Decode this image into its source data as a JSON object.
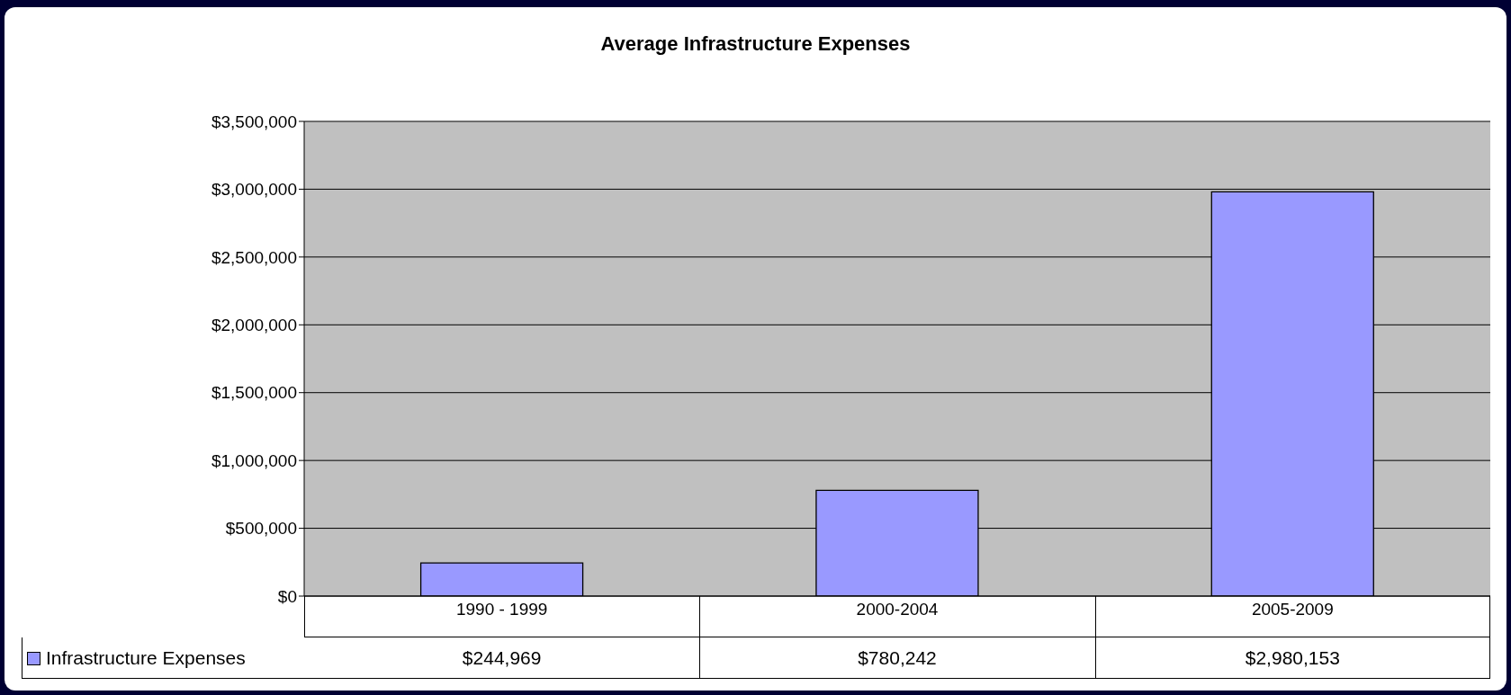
{
  "chart_data": {
    "type": "bar",
    "title": "Average Infrastructure Expenses",
    "categories": [
      "1990 - 1999",
      "2000-2004",
      "2005-2009"
    ],
    "series": [
      {
        "name": "Infrastructure Expenses",
        "color": "#9999ff",
        "values": [
          244969,
          780242,
          2980153
        ],
        "value_labels": [
          "$244,969",
          "$780,242",
          "$2,980,153"
        ]
      }
    ],
    "ylim": [
      0,
      3500000
    ],
    "yticks": [
      {
        "value": 0,
        "label": "$0"
      },
      {
        "value": 500000,
        "label": "$500,000"
      },
      {
        "value": 1000000,
        "label": "$1,000,000"
      },
      {
        "value": 1500000,
        "label": "$1,500,000"
      },
      {
        "value": 2000000,
        "label": "$2,000,000"
      },
      {
        "value": 2500000,
        "label": "$2,500,000"
      },
      {
        "value": 3000000,
        "label": "$3,000,000"
      },
      {
        "value": 3500000,
        "label": "$3,500,000"
      }
    ],
    "grid": "y",
    "legend": "bottom left"
  }
}
